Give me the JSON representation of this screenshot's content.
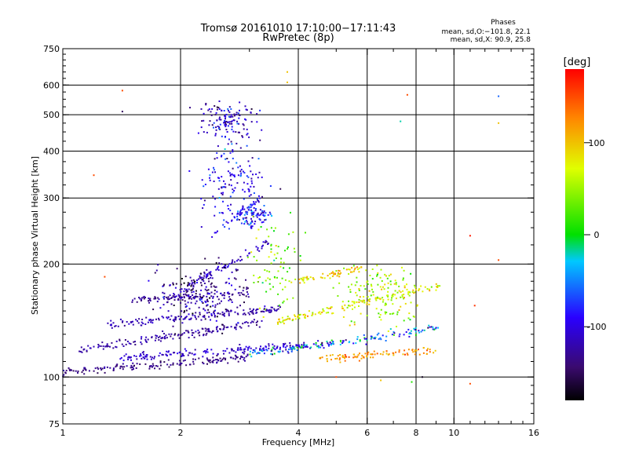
{
  "chart_data": {
    "type": "scatter",
    "title": "Tromsø 20161010 17:10:00−17:11:43",
    "subtitle": "RwPretec (8p)",
    "xlabel": "Frequency [MHz]",
    "ylabel": "Stationary phase Virtual Height [km]",
    "x_scale": "log",
    "y_scale": "log",
    "xlim": [
      1,
      16
    ],
    "ylim": [
      75,
      750
    ],
    "x_ticks": [
      1,
      2,
      4,
      6,
      8,
      10,
      16
    ],
    "y_ticks": [
      75,
      100,
      200,
      300,
      400,
      500,
      600,
      750
    ],
    "grid": true,
    "colorbar": {
      "label": "[deg]",
      "range": [
        -180,
        180
      ],
      "ticks": [
        -100,
        0,
        100
      ]
    },
    "phases": {
      "heading": "Phases",
      "o_line": "mean, sd,O:−101.8, 22.1",
      "x_line": "mean, sd,X:  90.9, 25.8",
      "o_mean": -101.8,
      "o_sd": 22.1,
      "x_mean": 90.9,
      "x_sd": 25.8
    },
    "traces": [
      {
        "f_start": 1.0,
        "f_end": 3.0,
        "h_start": 103,
        "h_end": 113,
        "phase": -135,
        "spread": 15
      },
      {
        "f_start": 1.4,
        "f_end": 4.3,
        "h_start": 112,
        "h_end": 122,
        "phase": -110,
        "spread": 15
      },
      {
        "f_start": 1.1,
        "f_end": 3.2,
        "h_start": 118,
        "h_end": 140,
        "phase": -125,
        "spread": 15
      },
      {
        "f_start": 1.3,
        "f_end": 3.6,
        "h_start": 138,
        "h_end": 152,
        "phase": -120,
        "spread": 15
      },
      {
        "f_start": 1.5,
        "f_end": 3.0,
        "h_start": 160,
        "h_end": 168,
        "phase": -130,
        "spread": 15
      },
      {
        "f_start": 3.0,
        "f_end": 9.2,
        "h_start": 115,
        "h_end": 135,
        "phase": -60,
        "spread": 70
      },
      {
        "f_start": 3.5,
        "f_end": 9.2,
        "h_start": 140,
        "h_end": 175,
        "phase": 80,
        "spread": 40
      },
      {
        "f_start": 4.0,
        "f_end": 6.0,
        "h_start": 180,
        "h_end": 197,
        "phase": 90,
        "spread": 40
      },
      {
        "f_start": 4.5,
        "f_end": 9.0,
        "h_start": 112,
        "h_end": 118,
        "phase": 120,
        "spread": 30
      },
      {
        "f_start": 2.0,
        "f_end": 3.4,
        "h_start": 170,
        "h_end": 230,
        "phase": -110,
        "spread": 20
      },
      {
        "f_start": 2.4,
        "f_end": 3.2,
        "h_start": 240,
        "h_end": 300,
        "phase": -90,
        "spread": 25
      }
    ],
    "clusters": [
      {
        "f_center": 2.65,
        "h_center": 480,
        "f_spread": 0.15,
        "h_spread": 0.12,
        "count": 130,
        "phase": -110
      },
      {
        "f_center": 2.75,
        "h_center": 330,
        "f_spread": 0.2,
        "h_spread": 0.25,
        "count": 150,
        "phase": -95
      },
      {
        "f_center": 3.1,
        "h_center": 270,
        "f_spread": 0.1,
        "h_spread": 0.08,
        "count": 70,
        "phase": -90
      },
      {
        "f_center": 2.3,
        "h_center": 165,
        "f_spread": 0.3,
        "h_spread": 0.2,
        "count": 220,
        "phase": -130
      },
      {
        "f_center": 3.5,
        "h_center": 200,
        "f_spread": 0.15,
        "h_spread": 0.25,
        "count": 80,
        "phase": 40
      },
      {
        "f_center": 6.5,
        "h_center": 165,
        "f_spread": 0.25,
        "h_spread": 0.2,
        "count": 140,
        "phase": 60
      }
    ],
    "isolated_points": [
      {
        "f": 1.42,
        "h": 580,
        "phase": 150
      },
      {
        "f": 1.42,
        "h": 510,
        "phase": -150
      },
      {
        "f": 1.2,
        "h": 345,
        "phase": 150
      },
      {
        "f": 1.28,
        "h": 185,
        "phase": 150
      },
      {
        "f": 3.75,
        "h": 650,
        "phase": 100
      },
      {
        "f": 3.75,
        "h": 610,
        "phase": 100
      },
      {
        "f": 7.6,
        "h": 565,
        "phase": 150
      },
      {
        "f": 7.3,
        "h": 480,
        "phase": -20
      },
      {
        "f": 13.0,
        "h": 560,
        "phase": -60
      },
      {
        "f": 13.0,
        "h": 475,
        "phase": 100
      },
      {
        "f": 13.0,
        "h": 205,
        "phase": 150
      },
      {
        "f": 11.0,
        "h": 238,
        "phase": 170
      },
      {
        "f": 11.3,
        "h": 155,
        "phase": 160
      },
      {
        "f": 11.0,
        "h": 96,
        "phase": 150
      },
      {
        "f": 5.0,
        "h": 100,
        "phase": 150
      },
      {
        "f": 7.8,
        "h": 97,
        "phase": 10
      },
      {
        "f": 8.3,
        "h": 100,
        "phase": -170
      },
      {
        "f": 6.5,
        "h": 98,
        "phase": 100
      }
    ]
  }
}
